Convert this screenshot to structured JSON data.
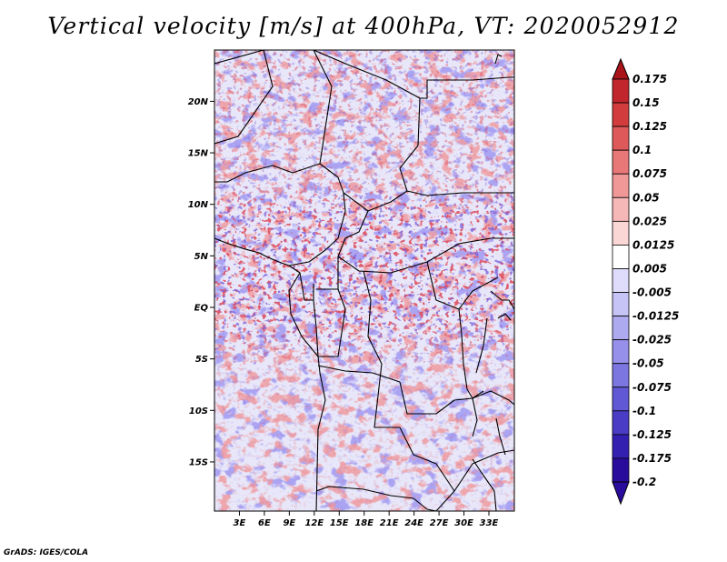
{
  "title": "Vertical velocity [m/s] at 400hPa, VT: 2020052912",
  "credit": "GrADS: IGES/COLA",
  "chart_data": {
    "type": "heatmap",
    "title": "Vertical velocity [m/s] at 400hPa, VT: 2020052912",
    "variable": "Vertical velocity",
    "units": "m/s",
    "level": "400hPa",
    "valid_time": "2020052912",
    "x_ticks": [
      "3E",
      "6E",
      "9E",
      "12E",
      "15E",
      "18E",
      "21E",
      "24E",
      "27E",
      "30E",
      "33E"
    ],
    "x_tick_values": [
      3,
      6,
      9,
      12,
      15,
      18,
      21,
      24,
      27,
      30,
      33
    ],
    "y_ticks": [
      "20N",
      "15N",
      "10N",
      "5N",
      "EQ",
      "5S",
      "10S",
      "15S"
    ],
    "y_tick_values": [
      20,
      15,
      10,
      5,
      0,
      -5,
      -10,
      -15
    ],
    "lon_range": [
      0,
      35
    ],
    "lat_range": [
      -20,
      25
    ],
    "colorbar_labels": [
      "0.175",
      "0.15",
      "0.125",
      "0.1",
      "0.075",
      "0.05",
      "0.025",
      "0.0125",
      "0.005",
      "-0.005",
      "-0.0125",
      "-0.025",
      "-0.05",
      "-0.075",
      "-0.1",
      "-0.125",
      "-0.175",
      "-0.2"
    ],
    "colorbar_colors": [
      "#a8141a",
      "#c0262c",
      "#d23c3c",
      "#de5a5a",
      "#e87878",
      "#f09898",
      "#f6b8b6",
      "#fad6d4",
      "#ffffff",
      "#dedcfa",
      "#c6c4f6",
      "#aeaaf0",
      "#9690ea",
      "#7c76e0",
      "#6058d4",
      "#4a3cc4",
      "#3420b0",
      "#2a0c9c"
    ],
    "colorbar_extend": "both"
  }
}
